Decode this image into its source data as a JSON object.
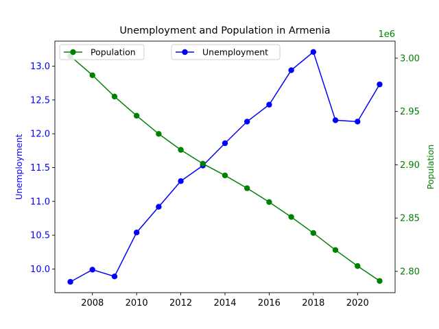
{
  "chart_data": {
    "type": "line",
    "title": "Unemployment and Population in Armenia",
    "x": [
      2007,
      2008,
      2009,
      2010,
      2011,
      2012,
      2013,
      2014,
      2015,
      2016,
      2017,
      2018,
      2019,
      2020,
      2021
    ],
    "xlim": [
      2006.3,
      2021.7
    ],
    "xticks": [
      2008,
      2010,
      2012,
      2014,
      2016,
      2018,
      2020
    ],
    "grid": false,
    "series": [
      {
        "name": "Unemployment",
        "axis": "left",
        "color": "#0000ff",
        "values": [
          9.81,
          9.99,
          9.89,
          10.54,
          10.92,
          11.3,
          11.53,
          11.86,
          12.18,
          12.43,
          12.94,
          13.21,
          12.2,
          12.18,
          12.73
        ]
      },
      {
        "name": "Population",
        "axis": "right",
        "color": "#008000",
        "values": [
          3002000,
          2984000,
          2964000,
          2946000,
          2929000,
          2914000,
          2901000,
          2890000,
          2878000,
          2865000,
          2851000,
          2836000,
          2820000,
          2805000,
          2791000
        ]
      }
    ],
    "left_axis": {
      "label": "Unemployment",
      "color": "#0000ff",
      "ylim": [
        9.65,
        13.37
      ],
      "ticks": [
        10.0,
        10.5,
        11.0,
        11.5,
        12.0,
        12.5,
        13.0
      ],
      "tick_labels": [
        "10.0",
        "10.5",
        "11.0",
        "11.5",
        "12.0",
        "12.5",
        "13.0"
      ]
    },
    "right_axis": {
      "label": "Population",
      "color": "#008000",
      "offset_text": "1e6",
      "ylim": [
        2780000,
        3016000
      ],
      "ticks": [
        2800000,
        2850000,
        2900000,
        2950000,
        3000000
      ],
      "tick_labels": [
        "2.80",
        "2.85",
        "2.90",
        "2.95",
        "3.00"
      ]
    },
    "legends": [
      {
        "series": "Population",
        "position": "upper-left"
      },
      {
        "series": "Unemployment",
        "position": "upper-center"
      }
    ]
  }
}
